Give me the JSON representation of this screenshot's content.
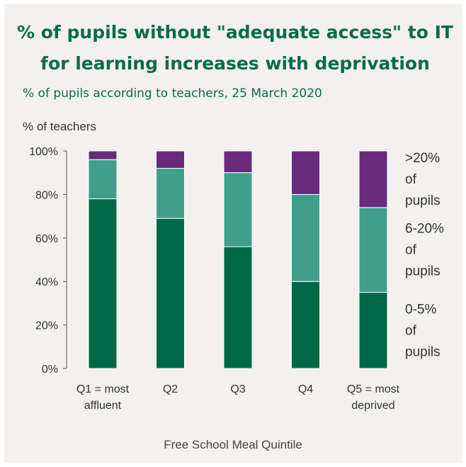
{
  "chart_data": {
    "type": "bar",
    "stacked": true,
    "title": "% of pupils without \"adequate access\" to IT for learning increases with deprivation",
    "subtitle": "% of pupils according to teachers, 25 March 2020",
    "ylabel": "% of teachers",
    "xlabel": "Free School Meal Quintile",
    "ylim": [
      0,
      100
    ],
    "yticks": [
      "0%",
      "20%",
      "40%",
      "60%",
      "80%",
      "100%"
    ],
    "grid": false,
    "legend": "right, beside stacks",
    "categories": [
      [
        "Q1 = most",
        "affluent"
      ],
      [
        "Q2"
      ],
      [
        "Q3"
      ],
      [
        "Q4"
      ],
      [
        "Q5 = most",
        "deprived"
      ]
    ],
    "series": [
      {
        "name": [
          "0-5%",
          "of",
          "pupils"
        ],
        "color": "#006847",
        "values": [
          78,
          69,
          56,
          40,
          35
        ]
      },
      {
        "name": [
          "6-20%",
          "of",
          "pupils"
        ],
        "color": "#3f9f89",
        "values": [
          18,
          23,
          34,
          40,
          39
        ]
      },
      {
        "name": [
          ">20%",
          "of",
          "pupils"
        ],
        "color": "#6a2b7c",
        "values": [
          4,
          8,
          10,
          20,
          26
        ]
      }
    ]
  }
}
